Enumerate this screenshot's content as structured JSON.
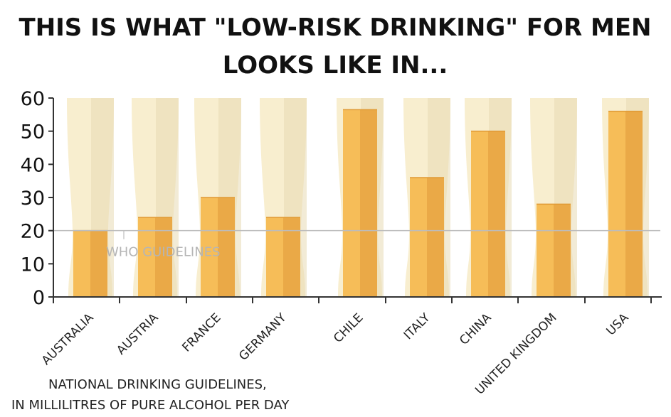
{
  "chart_data": {
    "type": "bar",
    "title_lines": [
      "THIS IS WHAT \"LOW-RISK DRINKING\" FOR MEN",
      "LOOKS LIKE IN..."
    ],
    "categories": [
      "AUSTRALIA",
      "AUSTRIA",
      "FRANCE",
      "GERMANY",
      "CHILE",
      "ITALY",
      "CHINA",
      "UNITED KINGDOM",
      "USA"
    ],
    "values": [
      20,
      24,
      30,
      24,
      56.5,
      36,
      50,
      28,
      56
    ],
    "ylim": [
      0,
      60
    ],
    "yticks": [
      "0",
      "10",
      "20",
      "30",
      "40",
      "50",
      "60"
    ],
    "reference_line": {
      "value": 20,
      "label": "WHO GUIDELINES"
    },
    "note_lines": [
      "NATIONAL DRINKING GUIDELINES,",
      "IN MILLILITRES OF PURE ALCOHOL  PER DAY"
    ],
    "grid": false,
    "colors": {
      "glass_light": "#f8eecf",
      "glass_shade": "#e8dbb5",
      "beer_light": "#f6bd58",
      "beer_shade": "#eaa947",
      "reference": "#bcbcbc",
      "axis": "#333333"
    }
  }
}
